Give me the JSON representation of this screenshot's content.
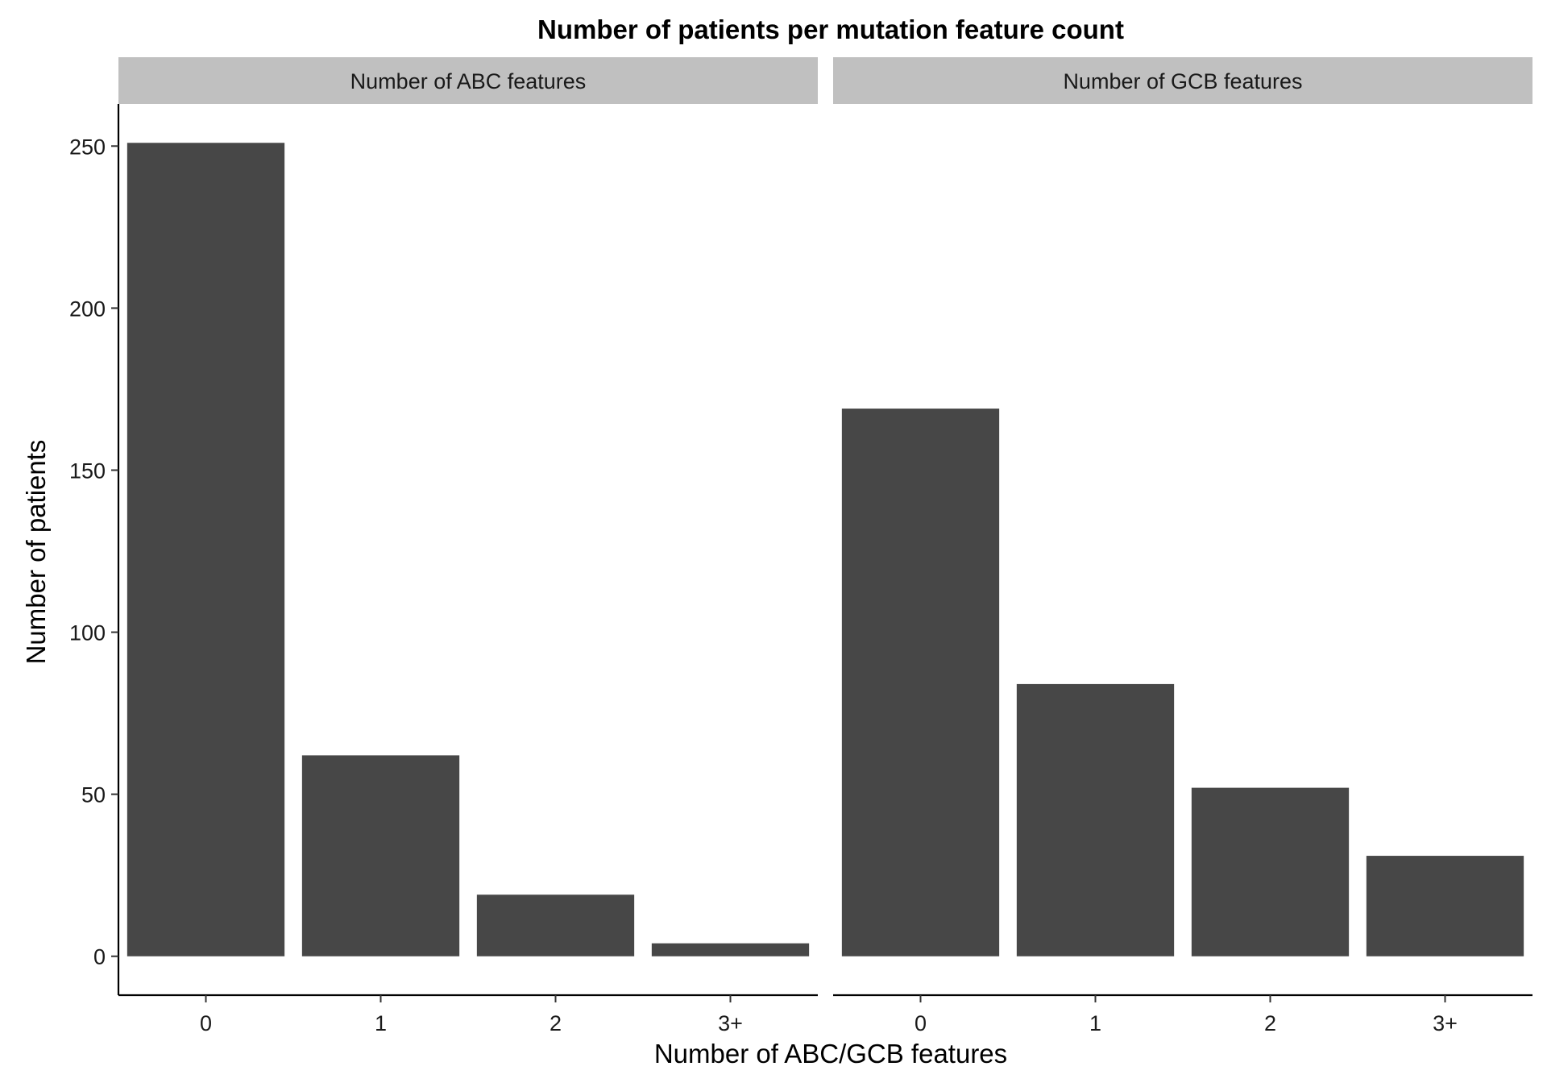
{
  "chart_data": {
    "type": "bar",
    "title": "Number of patients per mutation feature count",
    "xlabel": "Number of ABC/GCB features",
    "ylabel": "Number of patients",
    "ylim": [
      -12,
      263
    ],
    "yticks": [
      0,
      50,
      100,
      150,
      200,
      250
    ],
    "categories": [
      "0",
      "1",
      "2",
      "3+"
    ],
    "grid": false,
    "bar_color": "#474747",
    "strip_color": "#c0c0c0",
    "panels": [
      {
        "strip_label": "Number of ABC features",
        "values": [
          251,
          62,
          19,
          4
        ]
      },
      {
        "strip_label": "Number of GCB features",
        "values": [
          169,
          84,
          52,
          31
        ]
      }
    ]
  }
}
